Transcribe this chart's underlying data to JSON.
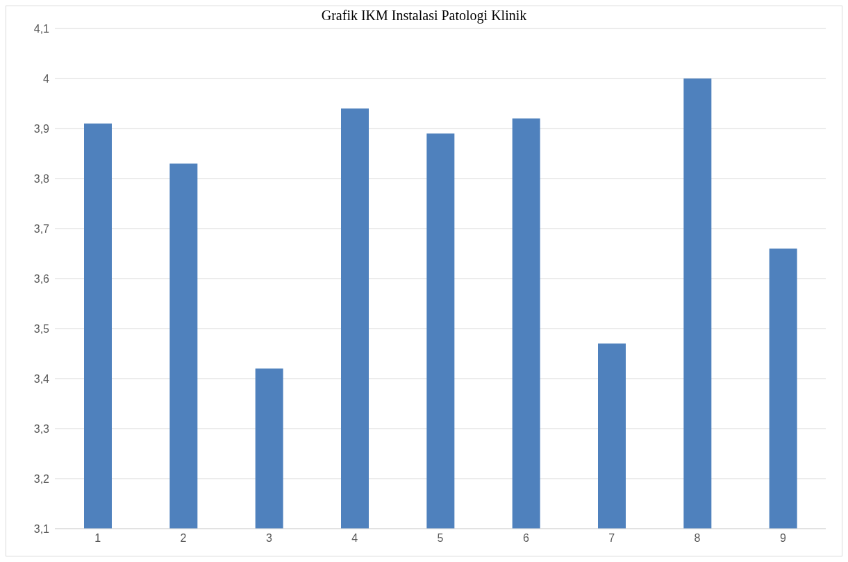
{
  "chart_data": {
    "type": "bar",
    "title": "Grafik IKM Instalasi Patologi Klinik",
    "categories": [
      "1",
      "2",
      "3",
      "4",
      "5",
      "6",
      "7",
      "8",
      "9"
    ],
    "values": [
      3.91,
      3.83,
      3.42,
      3.94,
      3.89,
      3.92,
      3.47,
      4.0,
      3.66
    ],
    "color": "#4f81bd",
    "ylim": [
      3.1,
      4.1
    ],
    "yticks": [
      {
        "value": 3.1,
        "label": "3,1"
      },
      {
        "value": 3.2,
        "label": "3,2"
      },
      {
        "value": 3.3,
        "label": "3,3"
      },
      {
        "value": 3.4,
        "label": "3,4"
      },
      {
        "value": 3.5,
        "label": "3,5"
      },
      {
        "value": 3.6,
        "label": "3,6"
      },
      {
        "value": 3.7,
        "label": "3,7"
      },
      {
        "value": 3.8,
        "label": "3,8"
      },
      {
        "value": 3.9,
        "label": "3,9"
      },
      {
        "value": 4,
        "label": "4"
      },
      {
        "value": 4.1,
        "label": "4,1"
      }
    ],
    "grid": "y"
  }
}
